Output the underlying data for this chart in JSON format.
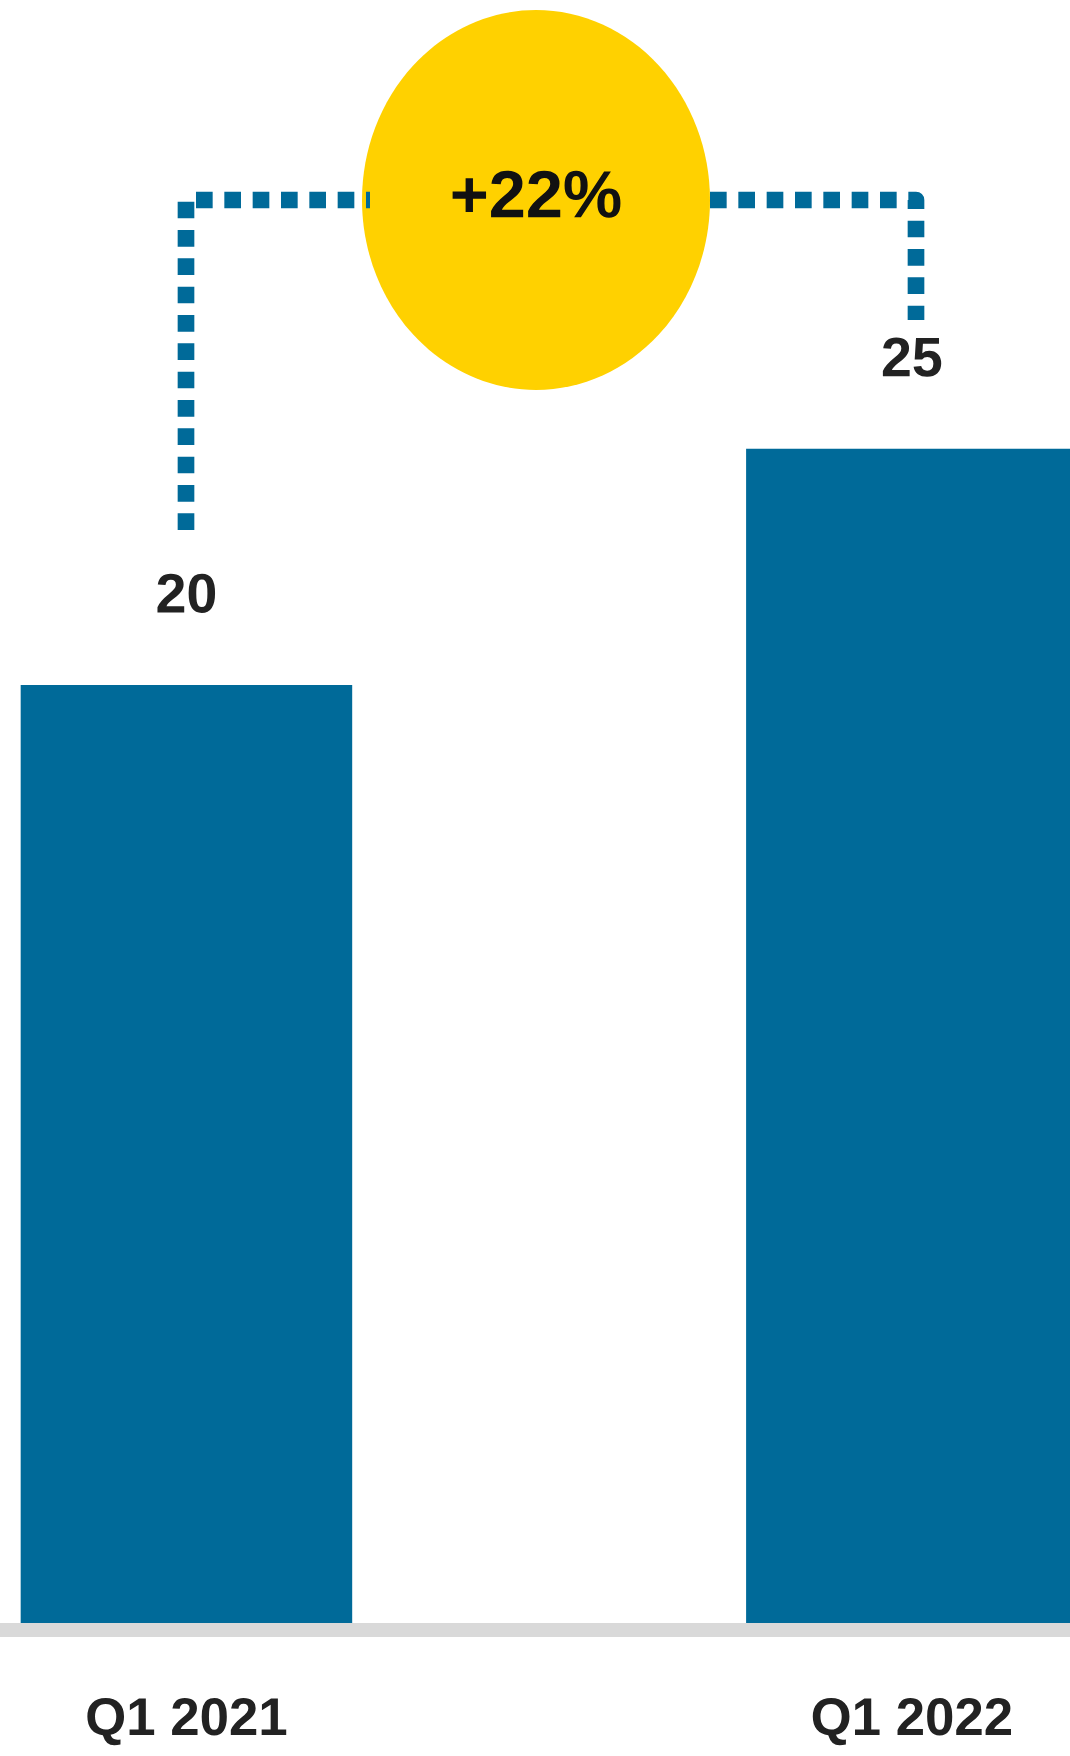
{
  "chart_data": {
    "type": "bar",
    "categories": [
      "Q1 2021",
      "Q1 2022"
    ],
    "series": [
      {
        "color": "#006a99",
        "values": [
          20,
          25
        ]
      }
    ],
    "data_labels": true,
    "annotations": [
      "+22%"
    ],
    "grid": false,
    "legend": false,
    "tick_labels": "x"
  }
}
